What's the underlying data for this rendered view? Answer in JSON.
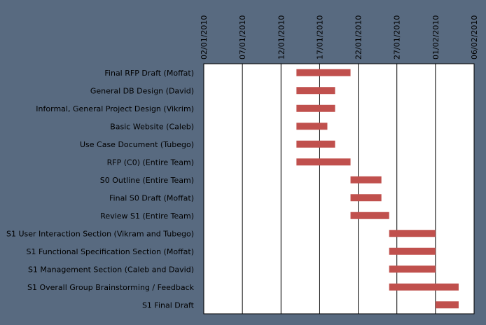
{
  "chart_data": {
    "type": "bar",
    "orientation": "horizontal",
    "subtype": "gantt",
    "title": "",
    "xlabel": "",
    "ylabel": "",
    "x_axis": {
      "position": "top",
      "min": "2010-01-02",
      "max": "2010-02-06",
      "ticks": [
        "02/01/2010",
        "07/01/2010",
        "12/01/2010",
        "17/01/2010",
        "22/01/2010",
        "27/01/2010",
        "01/02/2010",
        "06/02/2010"
      ],
      "tick_dates": [
        "2010-01-02",
        "2010-01-07",
        "2010-01-12",
        "2010-01-17",
        "2010-01-22",
        "2010-01-27",
        "2010-02-01",
        "2010-02-06"
      ]
    },
    "grid": {
      "vertical": true,
      "horizontal": false
    },
    "bar_color": "#c0504d",
    "tasks": [
      {
        "name": "Final RFP Draft (Moffat)",
        "start": "2010-01-14",
        "end": "2010-01-21"
      },
      {
        "name": "General DB Design (David)",
        "start": "2010-01-14",
        "end": "2010-01-19"
      },
      {
        "name": "Informal, General Project Design (Vikrim)",
        "start": "2010-01-14",
        "end": "2010-01-19"
      },
      {
        "name": "Basic Website (Caleb)",
        "start": "2010-01-14",
        "end": "2010-01-18"
      },
      {
        "name": "Use Case Document (Tubego)",
        "start": "2010-01-14",
        "end": "2010-01-19"
      },
      {
        "name": "RFP (C0) (Entire Team)",
        "start": "2010-01-14",
        "end": "2010-01-21"
      },
      {
        "name": "S0 Outline (Entire Team)",
        "start": "2010-01-21",
        "end": "2010-01-25"
      },
      {
        "name": "Final S0 Draft (Moffat)",
        "start": "2010-01-21",
        "end": "2010-01-25"
      },
      {
        "name": "Review S1 (Entire Team)",
        "start": "2010-01-21",
        "end": "2010-01-26"
      },
      {
        "name": "S1 User Interaction Section (Vikram and Tubego)",
        "start": "2010-01-26",
        "end": "2010-02-01"
      },
      {
        "name": "S1 Functional Specification Section (Moffat)",
        "start": "2010-01-26",
        "end": "2010-02-01"
      },
      {
        "name": "S1 Management Section (Caleb and David)",
        "start": "2010-01-26",
        "end": "2010-02-01"
      },
      {
        "name": "S1 Overall Group Brainstorming / Feedback",
        "start": "2010-01-26",
        "end": "2010-02-04"
      },
      {
        "name": "S1 Final Draft",
        "start": "2010-02-01",
        "end": "2010-02-04"
      }
    ]
  }
}
